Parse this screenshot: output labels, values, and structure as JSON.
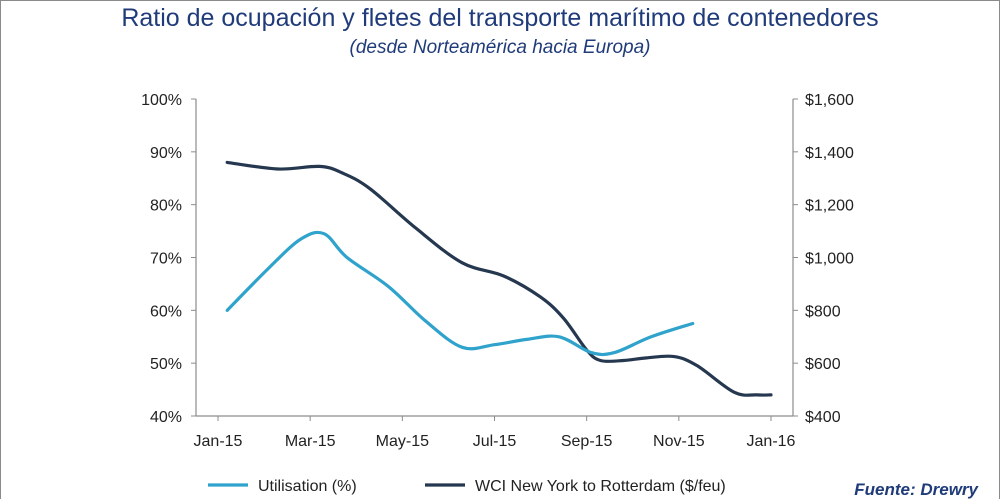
{
  "title": "Ratio de ocupación y fletes del transporte marítimo de contenedores",
  "subtitle": "(desde Norteamérica hacia Europa)",
  "source": "Fuente: Drewry",
  "colors": {
    "utilisation": "#2fa3cc",
    "wci": "#26384f",
    "axis": "#8c8c8c",
    "title": "#1f3b7a"
  },
  "chart_data": {
    "type": "line",
    "title": "Ratio de ocupación y fletes del transporte marítimo de contenedores",
    "subtitle": "(desde Norteamérica hacia Europa)",
    "x_tick_labels": [
      "Jan-15",
      "Mar-15",
      "May-15",
      "Jul-15",
      "Sep-15",
      "Nov-15",
      "Jan-16"
    ],
    "x_range_months": [
      0,
      12
    ],
    "y_left": {
      "range": [
        40,
        100
      ],
      "ticks": [
        40,
        50,
        60,
        70,
        80,
        90,
        100
      ],
      "tick_labels": [
        "40%",
        "50%",
        "60%",
        "70%",
        "80%",
        "90%",
        "100%"
      ]
    },
    "y_right": {
      "range": [
        400,
        1600
      ],
      "ticks": [
        400,
        600,
        800,
        1000,
        1200,
        1400,
        1600
      ],
      "tick_labels": [
        "$400",
        "$600",
        "$800",
        "$1,000",
        "$1,200",
        "$1,400",
        "$1,600"
      ]
    },
    "series": [
      {
        "name": "Utilisation (%)",
        "axis": "left",
        "x": [
          0.2,
          1.1,
          1.8,
          2.3,
          2.8,
          3.7,
          4.5,
          5.3,
          6.0,
          6.7,
          7.4,
          8.1,
          8.6,
          9.4,
          10.3
        ],
        "values": [
          60,
          68,
          73.5,
          74.5,
          70,
          64.5,
          58,
          53,
          53.5,
          54.5,
          55,
          52,
          52,
          55,
          57.5
        ]
      },
      {
        "name": "WCI New York to Rotterdam ($/feu)",
        "axis": "right",
        "x": [
          0.2,
          1.3,
          2.2,
          2.7,
          3.3,
          4.3,
          5.3,
          6.2,
          7.0,
          7.5,
          8.0,
          8.3,
          8.8,
          9.3,
          9.9,
          10.4,
          11.2,
          11.7,
          12.0
        ],
        "values": [
          1360,
          1335,
          1345,
          1320,
          1260,
          1110,
          980,
          930,
          850,
          770,
          650,
          610,
          610,
          620,
          625,
          590,
          490,
          480,
          480
        ]
      }
    ],
    "legend_position": "bottom"
  }
}
